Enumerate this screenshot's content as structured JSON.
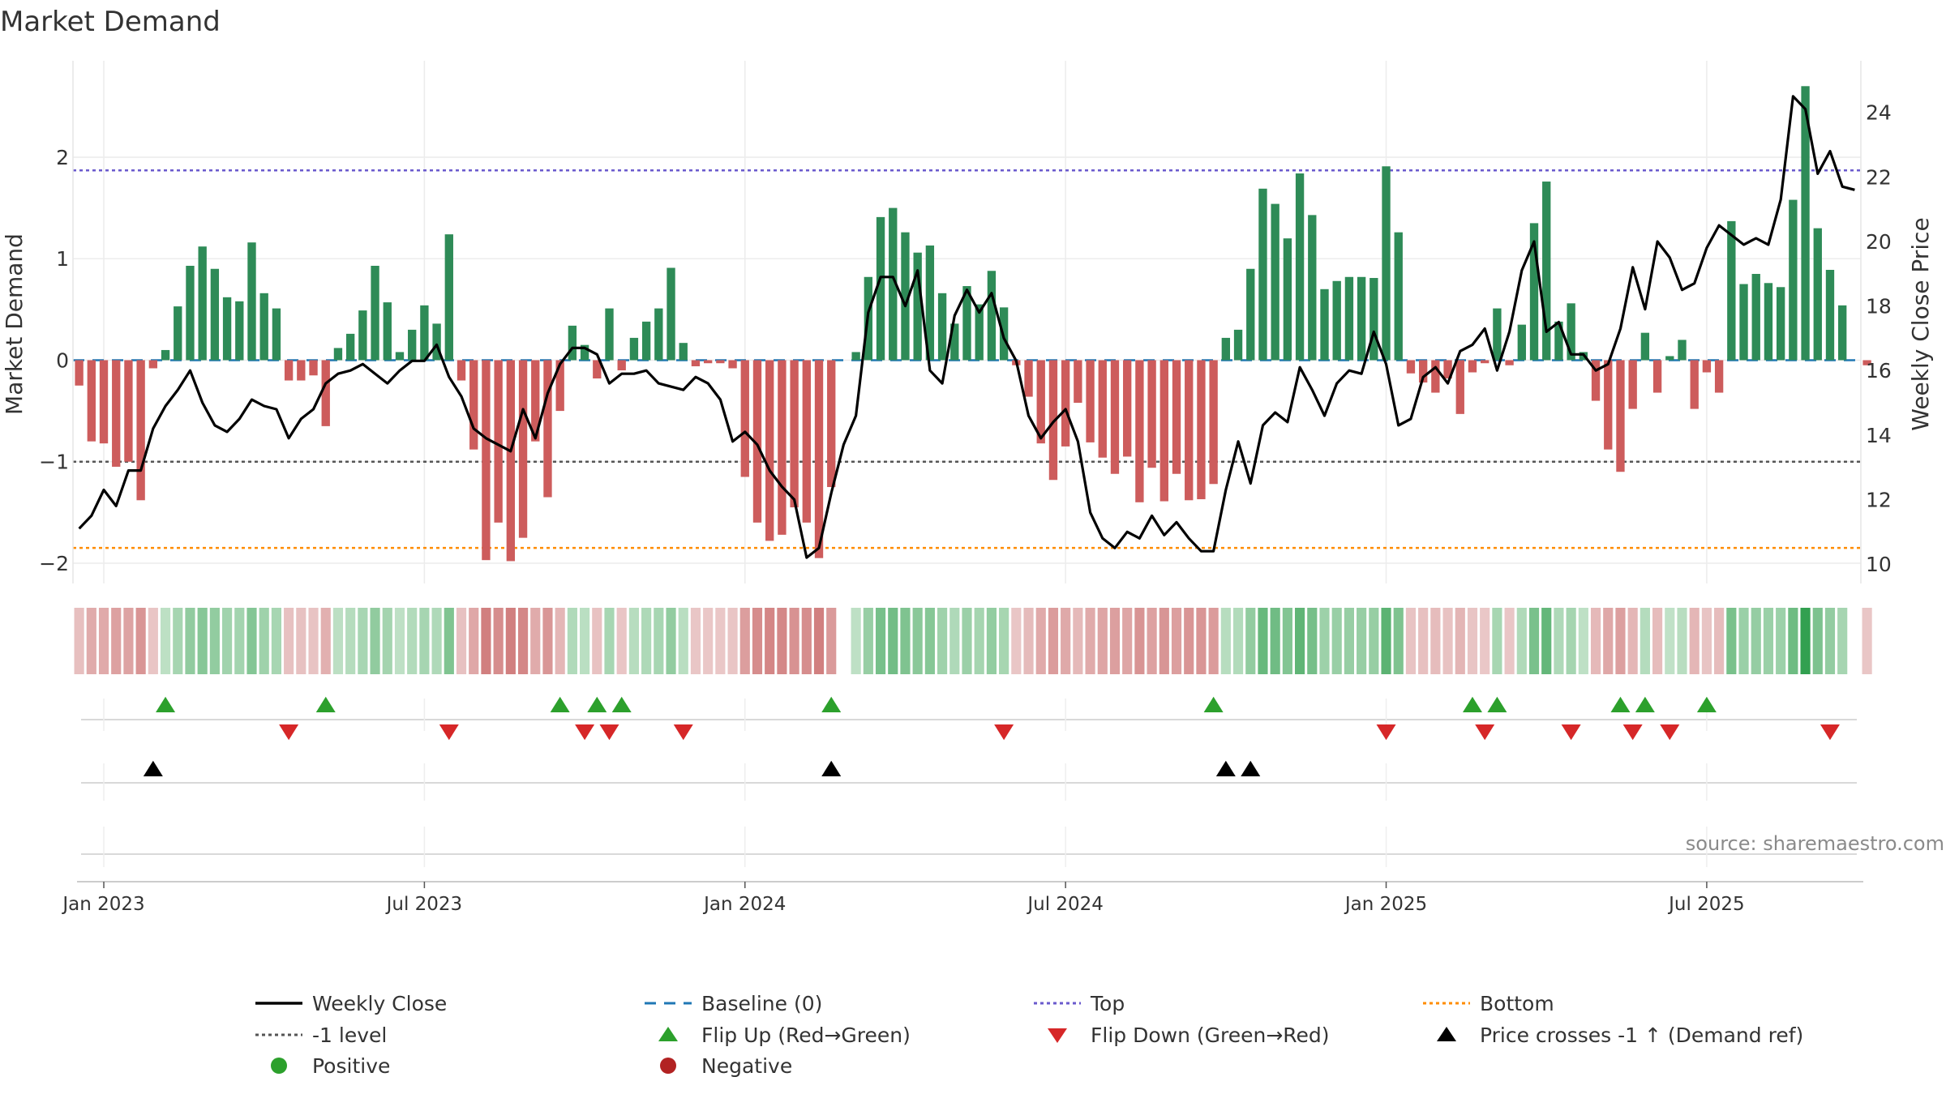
{
  "chart_data": {
    "type": "bar",
    "title": "Market Demand",
    "ylabel": "Market Demand",
    "y2label": "Weekly Close Price",
    "source": "source: sharemaestro.com",
    "ylim": [
      -2.2,
      2.95
    ],
    "y2lim": [
      9.4,
      25.6
    ],
    "yticks": [
      {
        "value": -2,
        "label": "−2"
      },
      {
        "value": -1,
        "label": "−1"
      },
      {
        "value": 0,
        "label": "0"
      },
      {
        "value": 1,
        "label": "1"
      },
      {
        "value": 2,
        "label": "2"
      }
    ],
    "y2ticks": [
      {
        "value": 10,
        "label": "10"
      },
      {
        "value": 12,
        "label": "12"
      },
      {
        "value": 14,
        "label": "14"
      },
      {
        "value": 16,
        "label": "16"
      },
      {
        "value": 18,
        "label": "18"
      },
      {
        "value": 20,
        "label": "20"
      },
      {
        "value": 22,
        "label": "22"
      },
      {
        "value": 24,
        "label": "24"
      }
    ],
    "xticks": [
      {
        "week": 2,
        "label": "Jan 2023"
      },
      {
        "week": 28,
        "label": "Jul 2023"
      },
      {
        "week": 54,
        "label": "Jan 2024"
      },
      {
        "week": 80,
        "label": "Jul 2024"
      },
      {
        "week": 106,
        "label": "Jan 2025"
      },
      {
        "week": 132,
        "label": "Jul 2025"
      }
    ],
    "weeks_total": 145,
    "reference_lines": {
      "top": 1.87,
      "bottom": -1.85,
      "minus_one": -1,
      "baseline": 0
    },
    "series": [
      {
        "name": "Market Demand",
        "axis": "left",
        "values": [
          -0.25,
          -0.8,
          -0.82,
          -1.05,
          -1.0,
          -1.38,
          -0.08,
          0.1,
          0.53,
          0.93,
          1.12,
          0.9,
          0.62,
          0.58,
          1.16,
          0.66,
          0.51,
          -0.2,
          -0.2,
          -0.15,
          -0.65,
          0.12,
          0.26,
          0.49,
          0.93,
          0.57,
          0.08,
          0.3,
          0.54,
          0.36,
          1.24,
          -0.2,
          -0.88,
          -1.97,
          -1.6,
          -1.98,
          -1.75,
          -0.8,
          -1.35,
          -0.5,
          0.34,
          0.15,
          -0.18,
          0.51,
          -0.1,
          0.22,
          0.38,
          0.51,
          0.91,
          0.17,
          -0.06,
          -0.03,
          -0.03,
          -0.08,
          -1.15,
          -1.6,
          -1.78,
          -1.72,
          -1.45,
          -1.6,
          -1.95,
          -1.25,
          0,
          0.08,
          0.82,
          1.41,
          1.5,
          1.26,
          1.06,
          1.13,
          0.66,
          0.36,
          0.73,
          0.55,
          0.88,
          0.52,
          -0.05,
          -0.36,
          -0.82,
          -1.18,
          -0.85,
          -0.42,
          -0.81,
          -0.96,
          -1.12,
          -0.95,
          -1.4,
          -1.06,
          -1.39,
          -1.12,
          -1.38,
          -1.37,
          -1.22,
          0.22,
          0.3,
          0.9,
          1.69,
          1.54,
          1.2,
          1.84,
          1.43,
          0.7,
          0.78,
          0.82,
          0.82,
          0.81,
          1.91,
          1.26,
          -0.13,
          -0.22,
          -0.32,
          -0.18,
          -0.53,
          -0.12,
          -0.03,
          0.51,
          -0.05,
          0.35,
          1.35,
          1.76,
          0.38,
          0.56,
          0.08,
          -0.4,
          -0.88,
          -1.1,
          -0.48,
          0.27,
          -0.32,
          0.04,
          0.2,
          -0.48,
          -0.12,
          -0.32,
          1.37,
          0.75,
          0.85,
          0.76,
          0.72,
          1.58,
          2.7,
          1.3,
          0.89,
          0.54,
          0,
          -0.05
        ]
      },
      {
        "name": "Weekly Close",
        "axis": "right",
        "values": [
          11.1,
          11.5,
          12.3,
          11.8,
          12.9,
          12.9,
          14.2,
          14.9,
          15.4,
          16.0,
          15.0,
          14.3,
          14.1,
          14.5,
          15.1,
          14.9,
          14.8,
          13.9,
          14.5,
          14.8,
          15.6,
          15.9,
          16.0,
          16.2,
          15.9,
          15.6,
          16.0,
          16.3,
          16.3,
          16.8,
          15.8,
          15.2,
          14.2,
          13.9,
          13.7,
          13.5,
          14.8,
          13.9,
          15.3,
          16.2,
          16.7,
          16.7,
          16.5,
          15.6,
          15.9,
          15.9,
          16.0,
          15.6,
          15.5,
          15.4,
          15.8,
          15.6,
          15.1,
          13.8,
          14.1,
          13.7,
          12.9,
          12.4,
          12.0,
          10.2,
          10.5,
          12.2,
          13.7,
          14.6,
          17.8,
          18.9,
          18.9,
          18.0,
          19.1,
          16.0,
          15.6,
          17.7,
          18.5,
          17.8,
          18.4,
          17.0,
          16.3,
          14.6,
          13.9,
          14.4,
          14.8,
          13.8,
          11.6,
          10.8,
          10.5,
          11.0,
          10.8,
          11.5,
          10.9,
          11.3,
          10.8,
          10.4,
          10.4,
          12.3,
          13.8,
          12.5,
          14.3,
          14.7,
          14.4,
          16.1,
          15.4,
          14.6,
          15.6,
          16.0,
          15.9,
          17.2,
          16.2,
          14.3,
          14.5,
          15.8,
          16.1,
          15.6,
          16.6,
          16.8,
          17.3,
          16.0,
          17.2,
          19.1,
          20.0,
          17.2,
          17.5,
          16.5,
          16.5,
          16.0,
          16.2,
          17.3,
          19.2,
          17.9,
          20.0,
          19.5,
          18.5,
          18.7,
          19.8,
          20.5,
          20.2,
          19.9,
          20.1,
          19.9,
          21.3,
          24.5,
          24.1,
          22.1,
          22.8,
          21.7,
          21.6
        ]
      }
    ],
    "flip_up_weeks": [
      7,
      20,
      39,
      42,
      44,
      61,
      92,
      113,
      115,
      125,
      127,
      132
    ],
    "flip_down_weeks": [
      17,
      30,
      41,
      43,
      49,
      75,
      106,
      114,
      121,
      126,
      129,
      142
    ],
    "price_cross_weeks": [
      6,
      61,
      93,
      95
    ],
    "legend": [
      {
        "label": "Weekly Close",
        "symbol": "line",
        "color": "#000000"
      },
      {
        "label": "Baseline (0)",
        "symbol": "dash",
        "color": "#1f77b4"
      },
      {
        "label": "Top",
        "symbol": "dot",
        "color": "#6a5acd"
      },
      {
        "label": "Bottom",
        "symbol": "dot",
        "color": "#ff8c00"
      },
      {
        "label": "-1 level",
        "symbol": "dot",
        "color": "#555555"
      },
      {
        "label": "Flip Up (Red→Green)",
        "symbol": "triangle-up",
        "color": "#2ca02c"
      },
      {
        "label": "Flip Down (Green→Red)",
        "symbol": "triangle-down",
        "color": "#d62728"
      },
      {
        "label": "Price crosses -1 ↑ (Demand ref)",
        "symbol": "triangle-up",
        "color": "#000000"
      },
      {
        "label": "Positive",
        "symbol": "circle",
        "color": "#2ca02c"
      },
      {
        "label": "Negative",
        "symbol": "circle",
        "color": "#b22222"
      }
    ],
    "colors": {
      "positive": "#2e8b57",
      "negative": "#cd5c5c",
      "line": "#000000",
      "flip_up": "#2ca02c",
      "flip_down": "#d62728"
    }
  }
}
